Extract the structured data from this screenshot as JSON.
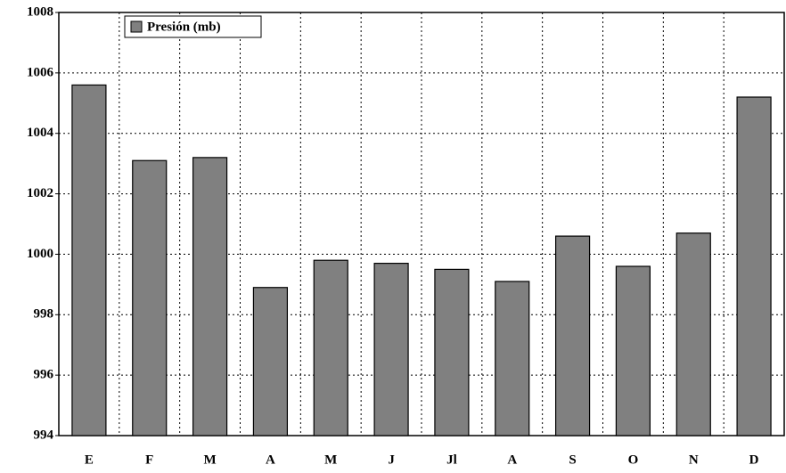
{
  "chart_data": {
    "type": "bar",
    "categories": [
      "E",
      "F",
      "M",
      "A",
      "M",
      "J",
      "Jl",
      "A",
      "S",
      "O",
      "N",
      "D"
    ],
    "series": [
      {
        "name": "Presión (mb)",
        "color": "#808080",
        "values": [
          1005.6,
          1003.1,
          1003.2,
          998.9,
          999.8,
          999.7,
          999.5,
          999.1,
          1000.6,
          999.6,
          1000.7,
          1005.2
        ]
      }
    ],
    "ylim": [
      994,
      1008
    ],
    "yticks": [
      994,
      996,
      998,
      1000,
      1002,
      1004,
      1006,
      1008
    ],
    "grid": true,
    "legend": "top-left"
  }
}
